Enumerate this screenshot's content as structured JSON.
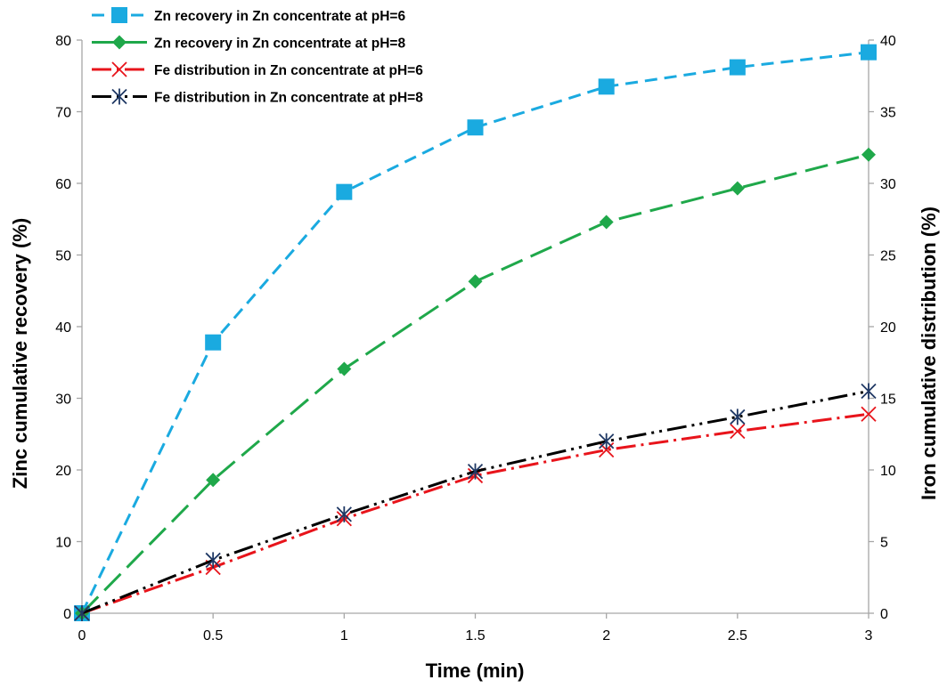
{
  "chart_data": {
    "type": "line",
    "xlabel": "Time (min)",
    "ylabel_left": "Zinc cumulative recovery (%)",
    "ylabel_right": "Iron cumulative distribution (%)",
    "x": [
      0,
      0.5,
      1,
      1.5,
      2,
      2.5,
      3
    ],
    "xlim": [
      0,
      3
    ],
    "xticks": [
      "0",
      "0.5",
      "1",
      "1.5",
      "2",
      "2.5",
      "3"
    ],
    "ylim_left": [
      0,
      80
    ],
    "yticks_left": [
      "0",
      "10",
      "20",
      "30",
      "40",
      "50",
      "60",
      "70",
      "80"
    ],
    "ylim_right": [
      0,
      40
    ],
    "yticks_right": [
      "0",
      "5",
      "10",
      "15",
      "20",
      "25",
      "30",
      "35",
      "40"
    ],
    "grid": false,
    "legend_position": "top-left",
    "series": [
      {
        "name": "Zn recovery in Zn concentrate at pH=6",
        "axis": "left",
        "color": "#1AAAE0",
        "marker": "square",
        "dash": "dash",
        "values": [
          0,
          37.8,
          58.8,
          67.8,
          73.5,
          76.2,
          78.3
        ]
      },
      {
        "name": "Zn recovery in Zn concentrate at pH=8",
        "axis": "left",
        "color": "#1FA84A",
        "marker": "diamond",
        "dash": "longdash",
        "values": [
          0,
          18.6,
          34.1,
          46.3,
          54.6,
          59.3,
          64.0
        ]
      },
      {
        "name": "Fe distribution in Zn concentrate at pH=6",
        "axis": "right",
        "color": "#E8141B",
        "marker": "x",
        "dash": "dashdot",
        "values": [
          0,
          3.2,
          6.6,
          9.6,
          11.4,
          12.7,
          13.9
        ]
      },
      {
        "name": "Fe distribution in Zn concentrate at pH=8",
        "axis": "right",
        "color": "#000000",
        "marker": "asterisk",
        "markerColor": "#1F3864",
        "dash": "dashdotdot",
        "values": [
          0,
          3.7,
          6.9,
          9.9,
          12.0,
          13.7,
          15.5
        ]
      }
    ]
  }
}
